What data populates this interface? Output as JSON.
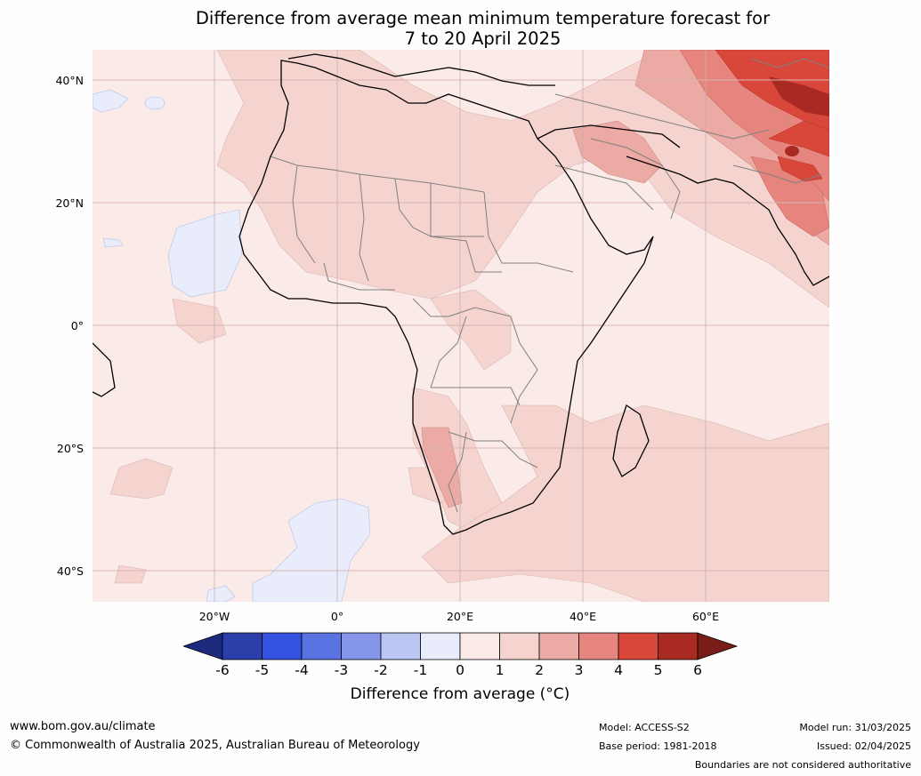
{
  "title": {
    "line1": "Difference from average mean minimum temperature forecast for",
    "line2": "7 to 20 April 2025"
  },
  "map": {
    "lat_labels": [
      "40°N",
      "20°N",
      "0°",
      "20°S",
      "40°S"
    ],
    "lon_labels": [
      "20°W",
      "0°",
      "20°E",
      "40°E",
      "60°E"
    ],
    "gridline_color": "#d9b4b4",
    "coast_color": "#000000",
    "border_color": "#808080"
  },
  "colorbar": {
    "ticks": [
      "-6",
      "-5",
      "-4",
      "-3",
      "-2",
      "-1",
      "0",
      "1",
      "2",
      "3",
      "4",
      "5",
      "6"
    ],
    "colors": [
      "#1c2a7d",
      "#2b3ea9",
      "#3452e0",
      "#5a73e2",
      "#8596e8",
      "#bcc6f2",
      "#e8ecfb",
      "#fbebe8",
      "#f5d4d0",
      "#ecaaa4",
      "#e6857d",
      "#d9473b",
      "#a92a22",
      "#7a1d18"
    ],
    "label": "Difference from average (°C)"
  },
  "footer": {
    "website": "www.bom.gov.au/climate",
    "copyright": "© Commonwealth of Australia 2025, Australian Bureau of Meteorology",
    "model": "Model: ACCESS-S2",
    "base_period": "Base period: 1981-2018",
    "model_run": "Model run: 31/03/2025",
    "issued": "Issued: 02/04/2025",
    "disclaimer": "Boundaries are not considered authoritative"
  }
}
